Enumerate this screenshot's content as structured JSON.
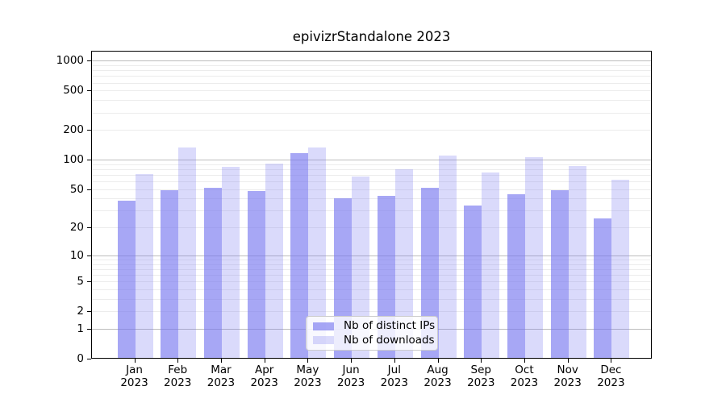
{
  "title": "epivizrStandalone 2023",
  "colors": {
    "bar_base": "#7878f0",
    "bar_ips": "rgba(120,120,240,0.65)",
    "bar_downloads": "rgba(120,120,240,0.27)",
    "major_grid": "#bdbdbd",
    "minor_grid": "#ececec",
    "axis": "#000000",
    "legend_border": "#cccccc"
  },
  "chart_data": {
    "type": "bar",
    "title": "epivizrStandalone 2023",
    "categories": [
      "Jan 2023",
      "Feb 2023",
      "Mar 2023",
      "Apr 2023",
      "May 2023",
      "Jun 2023",
      "Jul 2023",
      "Aug 2023",
      "Sep 2023",
      "Oct 2023",
      "Nov 2023",
      "Dec 2023"
    ],
    "series": [
      {
        "name": "Nb of distinct IPs",
        "color": "rgba(120,120,240,0.65)",
        "values": [
          38,
          49,
          52,
          48,
          116,
          40,
          43,
          52,
          34,
          44,
          49,
          25
        ]
      },
      {
        "name": "Nb of downloads",
        "color": "rgba(120,120,240,0.27)",
        "values": [
          71,
          134,
          84,
          92,
          134,
          68,
          80,
          110,
          74,
          106,
          86,
          62
        ]
      }
    ],
    "yscale": "log1p",
    "yticks": [
      0,
      1,
      2,
      5,
      10,
      20,
      50,
      100,
      200,
      500,
      1000
    ],
    "ylim": [
      0,
      1230
    ],
    "xlabel": "",
    "ylabel": "",
    "grid": true,
    "legend_position": "lower center"
  }
}
